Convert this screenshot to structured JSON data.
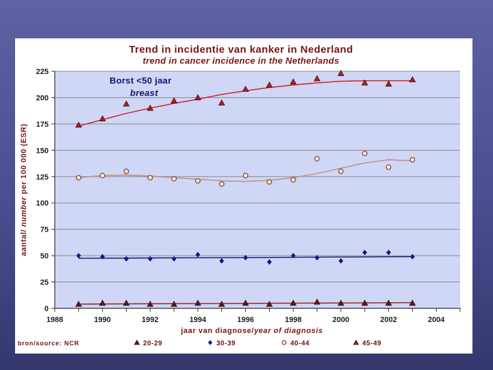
{
  "chart_data": {
    "type": "scatter",
    "title": "Trend in incidentie van kanker in Nederland",
    "subtitle": "trend in cancer incidence in the Netherlands",
    "ylabel_parts": [
      "aantal/ ",
      "number",
      "  per 100 000 (ESR)"
    ],
    "xlabel_parts": [
      "jaar van diagnose/",
      "year of diagnosis"
    ],
    "annotation": {
      "line1": "Borst <50 jaar",
      "line2": "breast"
    },
    "source": "bron/source: NCR",
    "xlim": [
      1988,
      2005
    ],
    "ylim": [
      0,
      225
    ],
    "x_ticks": [
      "1988",
      "1990",
      "1992",
      "1994",
      "1996",
      "1998",
      "2000",
      "2002",
      "2004"
    ],
    "y_ticks": [
      "0",
      "25",
      "50",
      "75",
      "100",
      "125",
      "150",
      "175",
      "200",
      "225"
    ],
    "grid": true,
    "x": [
      1989,
      1990,
      1991,
      1992,
      1993,
      1994,
      1995,
      1996,
      1997,
      1998,
      1999,
      2000,
      2001,
      2002,
      2003
    ],
    "series": [
      {
        "name": "20-29",
        "marker": "triangle",
        "color": "#5a1a1a",
        "values": [
          4,
          5,
          5,
          4,
          4,
          5,
          4,
          5,
          4,
          5,
          6,
          5,
          5,
          5,
          5
        ],
        "trend": [
          [
            1989,
            4
          ],
          [
            1993,
            4.4
          ],
          [
            1997,
            4.8
          ],
          [
            2000,
            5.1
          ],
          [
            2003,
            5.4
          ]
        ]
      },
      {
        "name": "30-39",
        "marker": "diamond",
        "color": "#0b1a8a",
        "values": [
          50,
          49,
          47,
          47,
          47,
          51,
          45,
          48,
          44,
          50,
          48,
          45,
          53,
          53,
          49
        ],
        "trend": [
          [
            1989,
            47.5
          ],
          [
            1992,
            47.8
          ],
          [
            1996,
            48.2
          ],
          [
            2000,
            48.7
          ],
          [
            2003,
            49
          ]
        ]
      },
      {
        "name": "40-44",
        "marker": "circle",
        "color": "#8a4030",
        "values": [
          124,
          126,
          130,
          124,
          123,
          121,
          118,
          126,
          120,
          122,
          142,
          130,
          147,
          134,
          141
        ],
        "trend": [
          [
            1989,
            124
          ],
          [
            1990,
            126
          ],
          [
            1991,
            126.5
          ],
          [
            1992,
            125.5
          ],
          [
            1993,
            124
          ],
          [
            1994,
            122.5
          ],
          [
            1995,
            121
          ],
          [
            1996,
            120.5
          ],
          [
            1997,
            121.5
          ],
          [
            1998,
            124
          ],
          [
            1999,
            128
          ],
          [
            2000,
            133
          ],
          [
            2001,
            138
          ],
          [
            2002,
            141
          ],
          [
            2003,
            140
          ]
        ]
      },
      {
        "name": "45-49",
        "marker": "triangle",
        "color": "#c01a1a",
        "values": [
          174,
          180,
          194,
          190,
          197,
          200,
          195,
          208,
          212,
          215,
          218,
          223,
          214,
          213,
          217
        ],
        "trend": [
          [
            1989,
            173
          ],
          [
            1990,
            179
          ],
          [
            1991,
            185
          ],
          [
            1992,
            190
          ],
          [
            1993,
            194.5
          ],
          [
            1994,
            198.5
          ],
          [
            1995,
            203
          ],
          [
            1996,
            206.5
          ],
          [
            1997,
            209.5
          ],
          [
            1998,
            212
          ],
          [
            1999,
            214
          ],
          [
            2000,
            215.5
          ],
          [
            2001,
            216
          ],
          [
            2002,
            216
          ],
          [
            2003,
            216
          ]
        ]
      }
    ]
  },
  "colors": {
    "plot_bg": "#cfd6f6",
    "title": "#7a1414",
    "annotation": "#14146e"
  }
}
